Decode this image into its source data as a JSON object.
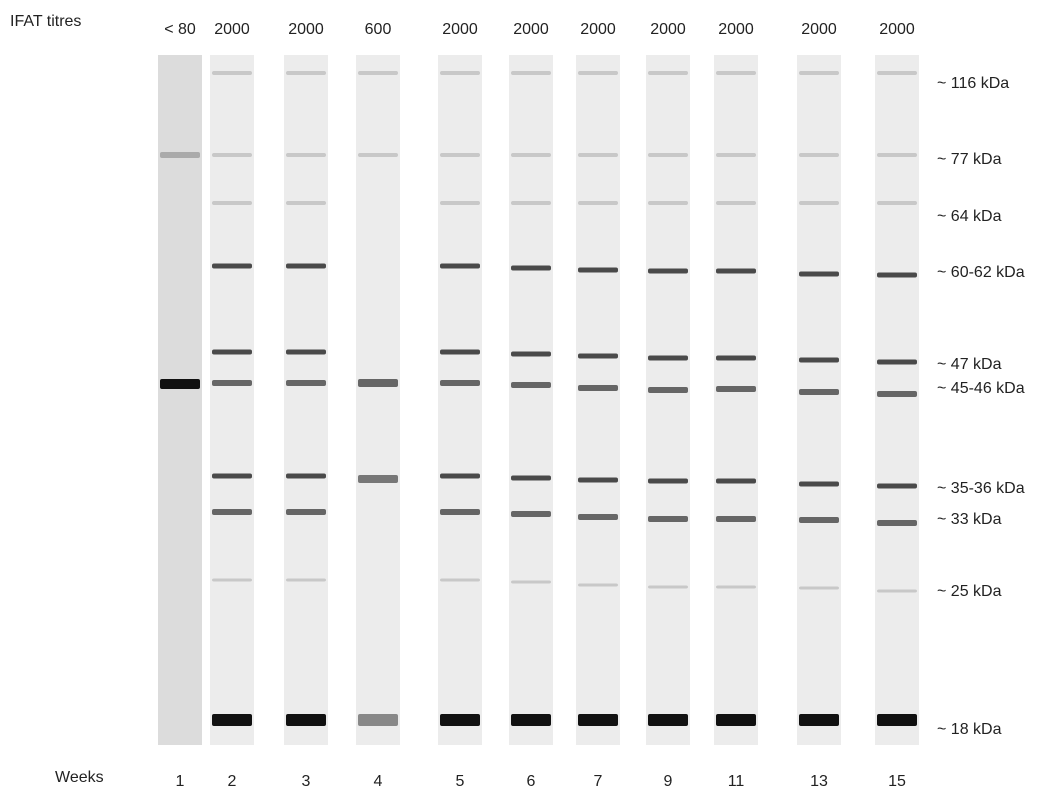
{
  "header": {
    "titre_label": "IFAT titres",
    "weeks_label": "Weeks"
  },
  "lanes": [
    {
      "titre": "< 80",
      "week": "1"
    },
    {
      "titre": "2000",
      "week": "2"
    },
    {
      "titre": "2000",
      "week": "3"
    },
    {
      "titre": "600",
      "week": "4"
    },
    {
      "titre": "2000",
      "week": "5"
    },
    {
      "titre": "2000",
      "week": "6"
    },
    {
      "titre": "2000",
      "week": "7"
    },
    {
      "titre": "2000",
      "week": "9"
    },
    {
      "titre": "2000",
      "week": "11"
    },
    {
      "titre": "2000",
      "week": "13"
    },
    {
      "titre": "2000",
      "week": "15"
    }
  ],
  "markers": [
    "~ 116 kDa",
    "~ 77 kDa",
    "~ 64 kDa",
    "~ 60-62 kDa",
    "~ 47 kDa",
    "~ 45-46 kDa",
    "~ 35-36 kDa",
    "~ 33 kDa",
    "~ 25 kDa",
    "~ 18 kDa"
  ]
}
